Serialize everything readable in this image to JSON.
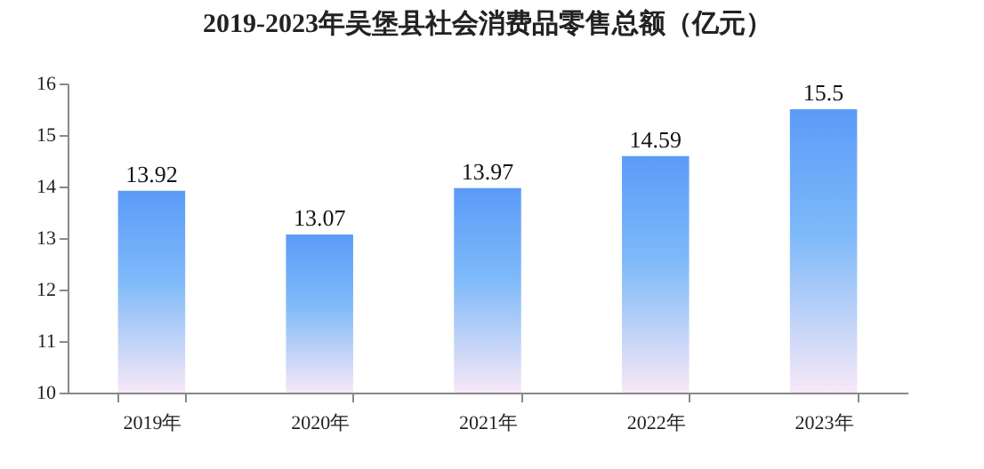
{
  "chart_data": {
    "type": "bar",
    "title": "2019-2023年吴堡县社会消费品零售总额（亿元）",
    "categories": [
      "2019年",
      "2020年",
      "2021年",
      "2022年",
      "2023年"
    ],
    "values": [
      13.92,
      13.07,
      13.97,
      14.59,
      15.5
    ],
    "color": "#5b9bf8",
    "ylim": [
      10,
      16
    ],
    "yticks": [
      10,
      11,
      12,
      13,
      14,
      15,
      16
    ],
    "data_labels": true,
    "grid": false
  }
}
